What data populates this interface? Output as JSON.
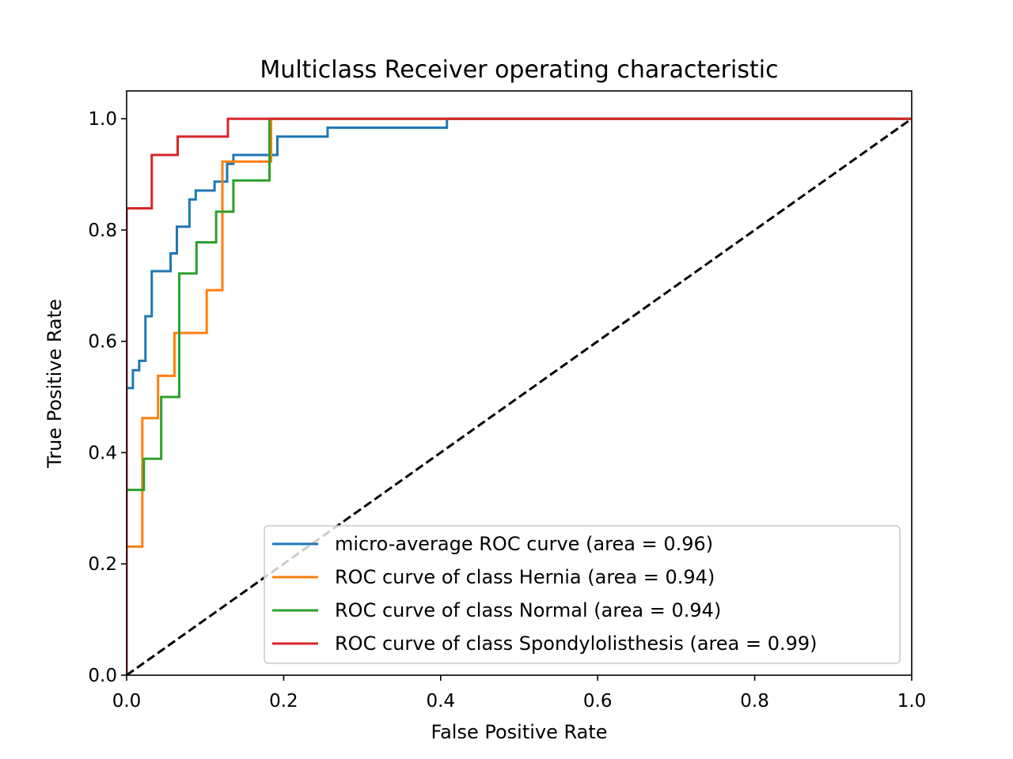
{
  "chart_data": {
    "type": "line",
    "title": "Multiclass Receiver operating characteristic",
    "xlabel": "False Positive Rate",
    "ylabel": "True Positive Rate",
    "xlim": [
      0.0,
      1.0
    ],
    "ylim": [
      0.0,
      1.05
    ],
    "xticks": [
      "0.0",
      "0.2",
      "0.4",
      "0.6",
      "0.8",
      "1.0"
    ],
    "yticks": [
      "0.0",
      "0.2",
      "0.4",
      "0.6",
      "0.8",
      "1.0"
    ],
    "grid": false,
    "legend_position": "lower-right",
    "series": [
      {
        "name": "micro-average ROC curve (area = 0.96)",
        "color": "#1f77b4",
        "x": [
          0,
          0,
          0.008,
          0.008,
          0.016,
          0.016,
          0.024,
          0.024,
          0.032,
          0.032,
          0.056,
          0.056,
          0.064,
          0.064,
          0.08,
          0.08,
          0.088,
          0.088,
          0.112,
          0.112,
          0.128,
          0.128,
          0.136,
          0.136,
          0.192,
          0.192,
          0.256,
          0.256,
          0.408,
          0.408,
          1.0
        ],
        "y": [
          0,
          0.516,
          0.516,
          0.548,
          0.548,
          0.565,
          0.565,
          0.645,
          0.645,
          0.726,
          0.726,
          0.758,
          0.758,
          0.806,
          0.806,
          0.855,
          0.855,
          0.871,
          0.871,
          0.887,
          0.887,
          0.919,
          0.919,
          0.935,
          0.935,
          0.968,
          0.968,
          0.984,
          0.984,
          1.0,
          1.0
        ]
      },
      {
        "name": "ROC curve of class Hernia (area = 0.94)",
        "color": "#ff7f0e",
        "x": [
          0,
          0,
          0.02,
          0.02,
          0.04,
          0.04,
          0.061,
          0.061,
          0.102,
          0.102,
          0.122,
          0.122,
          0.184,
          0.184,
          1.0
        ],
        "y": [
          0,
          0.231,
          0.231,
          0.462,
          0.462,
          0.538,
          0.538,
          0.615,
          0.615,
          0.692,
          0.692,
          0.923,
          0.923,
          1.0,
          1.0
        ]
      },
      {
        "name": "ROC curve of class Normal (area = 0.94)",
        "color": "#2ca02c",
        "x": [
          0,
          0,
          0.022,
          0.022,
          0.044,
          0.044,
          0.067,
          0.067,
          0.089,
          0.089,
          0.114,
          0.114,
          0.136,
          0.136,
          0.182,
          0.182,
          1.0
        ],
        "y": [
          0,
          0.333,
          0.333,
          0.389,
          0.389,
          0.5,
          0.5,
          0.722,
          0.722,
          0.778,
          0.778,
          0.833,
          0.833,
          0.889,
          0.889,
          1.0,
          1.0
        ]
      },
      {
        "name": "ROC curve of class Spondylolisthesis (area = 0.99)",
        "color": "#d62728",
        "x": [
          0,
          0,
          0.032,
          0.032,
          0.065,
          0.065,
          0.129,
          0.129,
          1.0
        ],
        "y": [
          0,
          0.839,
          0.839,
          0.935,
          0.935,
          0.968,
          0.968,
          1.0,
          1.0
        ]
      }
    ],
    "reference_line": {
      "x": [
        0,
        1
      ],
      "y": [
        0,
        1
      ],
      "color": "#000000",
      "style": "dashed"
    }
  }
}
